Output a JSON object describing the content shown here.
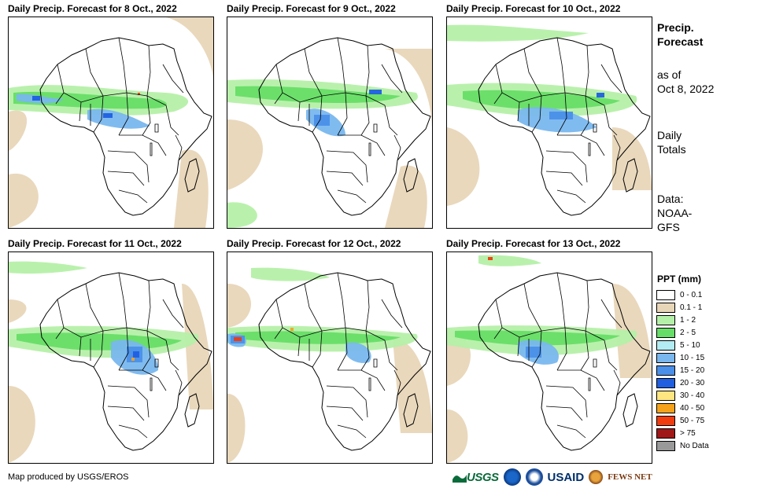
{
  "panels": [
    {
      "title": "Daily Precip. Forecast for 8 Oct., 2022"
    },
    {
      "title": "Daily Precip. Forecast for 9 Oct., 2022"
    },
    {
      "title": "Daily Precip. Forecast for 10 Oct., 2022"
    },
    {
      "title": "Daily Precip. Forecast for 11 Oct., 2022"
    },
    {
      "title": "Daily Precip. Forecast for 12 Oct., 2022"
    },
    {
      "title": "Daily Precip. Forecast for 13 Oct., 2022"
    }
  ],
  "sidebar": {
    "title_line1": "Precip.",
    "title_line2": "Forecast",
    "asof_line1": "as of",
    "asof_line2": "Oct 8, 2022",
    "totals_line1": "Daily",
    "totals_line2": "Totals",
    "data_line1": "Data:",
    "data_line2": "NOAA-",
    "data_line3": "GFS"
  },
  "legend": {
    "title": "PPT (mm)",
    "items": [
      {
        "label": "0 - 0.1",
        "color": "#ffffff"
      },
      {
        "label": "0.1 - 1",
        "color": "#e8d6b8"
      },
      {
        "label": "1 - 2",
        "color": "#b5f0a8"
      },
      {
        "label": "2 - 5",
        "color": "#66dd66"
      },
      {
        "label": "5 - 10",
        "color": "#b3ecf2"
      },
      {
        "label": "10 - 15",
        "color": "#79b7ee"
      },
      {
        "label": "15 - 20",
        "color": "#4a8fe8"
      },
      {
        "label": "20 - 30",
        "color": "#1f5fe0"
      },
      {
        "label": "30 - 40",
        "color": "#ffe680"
      },
      {
        "label": "40 - 50",
        "color": "#f5a21a"
      },
      {
        "label": "50 - 75",
        "color": "#f03c0f"
      },
      {
        "label": "> 75",
        "color": "#a01818"
      },
      {
        "label": "No Data",
        "color": "#999999"
      }
    ]
  },
  "credit": "Map produced by USGS/EROS",
  "logos": {
    "usgs": "USGS",
    "usaid": "USAID",
    "fews": "FEWS NET"
  }
}
